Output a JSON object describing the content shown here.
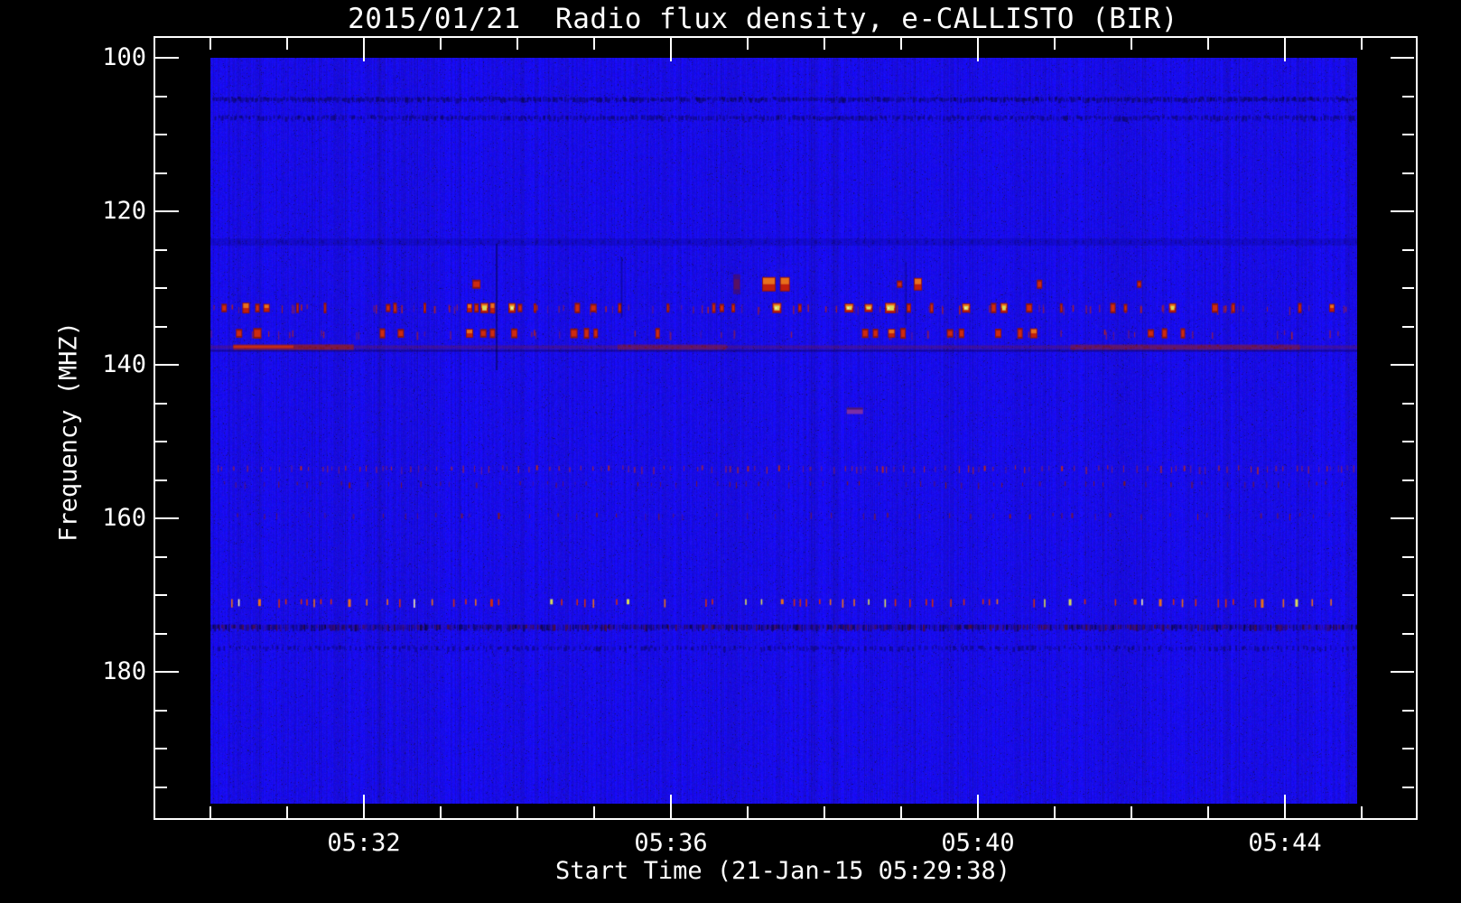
{
  "window": {
    "background": "#000000"
  },
  "title": "2015/01/21  Radio flux density, e-CALLISTO (BIR)",
  "axis": {
    "x_title": "Start Time (21-Jan-15 05:29:38)",
    "y_title": "Frequency (MHZ)",
    "x_major_labels": [
      "05:32",
      "05:36",
      "05:40",
      "05:44"
    ],
    "y_major_labels": [
      "100",
      "120",
      "140",
      "160",
      "180"
    ]
  },
  "chart_data": {
    "type": "heatmap",
    "title": "2015/01/21  Radio flux density, e-CALLISTO (BIR)",
    "xlabel": "Start Time (21-Jan-15 05:29:38)",
    "ylabel": "Frequency (MHZ)",
    "instrument": "e-CALLISTO (BIR)",
    "date": "2015/01/21",
    "start_time_label": "21-Jan-15 05:29:38",
    "x_tick_labels": [
      "05:32",
      "05:36",
      "05:40",
      "05:44"
    ],
    "x_minor_step_minutes": 1,
    "y_tick_values_mhz": [
      100,
      120,
      140,
      160,
      180
    ],
    "y_minor_step_mhz": 5,
    "freq_axis_range_mhz": [
      97.4,
      199.3
    ],
    "freq_image_range_mhz": [
      100.0,
      197.2
    ],
    "legend": "none",
    "grid": "off",
    "palette": {
      "background_blue": "#1A10E8",
      "noise_dark_blue": "#0E06B4",
      "red": "#CE2B10",
      "dark_red": "#8C1710",
      "orange": "#E8701C",
      "yellow": "#D9DC5A",
      "pale_yellow": "#F4EFB4",
      "purple": "#7B2FA5",
      "frame_white": "#FFFFFF"
    },
    "rfi_bands": [
      {
        "freq_mhz": 105.4,
        "kind": "dark_speckle",
        "density": 0.45,
        "strength": 0.3
      },
      {
        "freq_mhz": 107.8,
        "kind": "dark_speckle",
        "density": 0.35,
        "strength": 0.25
      },
      {
        "freq_mhz": 124.0,
        "kind": "dark_band",
        "strength": 0.15
      },
      {
        "freq_mhz": 129.5,
        "kind": "burst_blobs",
        "blobs": [
          [
            0.232,
            9,
            10,
            1
          ],
          [
            0.459,
            8,
            22,
            0
          ],
          [
            0.487,
            15,
            16,
            2
          ],
          [
            0.501,
            11,
            16,
            2
          ],
          [
            0.601,
            6,
            8,
            1
          ],
          [
            0.617,
            9,
            14,
            2
          ],
          [
            0.723,
            6,
            10,
            1
          ],
          [
            0.81,
            5,
            8,
            1
          ]
        ]
      },
      {
        "freq_mhz": 132.6,
        "kind": "blob_row",
        "tick_count": 90,
        "blobs": [
          [
            0.012,
            6,
            1
          ],
          [
            0.031,
            8,
            2
          ],
          [
            0.041,
            5,
            1
          ],
          [
            0.049,
            7,
            2
          ],
          [
            0.076,
            3,
            1
          ],
          [
            0.1,
            3,
            1
          ],
          [
            0.155,
            5,
            1
          ],
          [
            0.161,
            4,
            1
          ],
          [
            0.187,
            3,
            1
          ],
          [
            0.226,
            6,
            2
          ],
          [
            0.232,
            5,
            1
          ],
          [
            0.239,
            9,
            3
          ],
          [
            0.246,
            6,
            2
          ],
          [
            0.263,
            8,
            3
          ],
          [
            0.27,
            5,
            1
          ],
          [
            0.283,
            3,
            1
          ],
          [
            0.32,
            6,
            1
          ],
          [
            0.334,
            7,
            1
          ],
          [
            0.357,
            4,
            1
          ],
          [
            0.399,
            3,
            1
          ],
          [
            0.439,
            4,
            1
          ],
          [
            0.446,
            5,
            1
          ],
          [
            0.456,
            4,
            1
          ],
          [
            0.494,
            10,
            3
          ],
          [
            0.514,
            4,
            1
          ],
          [
            0.557,
            10,
            3
          ],
          [
            0.574,
            9,
            3
          ],
          [
            0.593,
            12,
            3
          ],
          [
            0.609,
            5,
            1
          ],
          [
            0.629,
            4,
            1
          ],
          [
            0.659,
            9,
            3
          ],
          [
            0.683,
            6,
            1
          ],
          [
            0.692,
            8,
            3
          ],
          [
            0.714,
            7,
            1
          ],
          [
            0.742,
            3,
            1
          ],
          [
            0.787,
            6,
            1
          ],
          [
            0.798,
            4,
            1
          ],
          [
            0.839,
            8,
            3
          ],
          [
            0.876,
            7,
            1
          ],
          [
            0.892,
            4,
            1
          ],
          [
            0.95,
            4,
            1
          ],
          [
            0.978,
            6,
            2
          ]
        ]
      },
      {
        "freq_mhz": 135.9,
        "kind": "blob_row",
        "tick_count": 50,
        "blobs": [
          [
            0.025,
            7,
            1
          ],
          [
            0.041,
            9,
            1
          ],
          [
            0.15,
            6,
            1
          ],
          [
            0.166,
            7,
            1
          ],
          [
            0.226,
            8,
            2
          ],
          [
            0.238,
            7,
            1
          ],
          [
            0.246,
            6,
            1
          ],
          [
            0.265,
            7,
            1
          ],
          [
            0.317,
            8,
            1
          ],
          [
            0.328,
            6,
            1
          ],
          [
            0.336,
            5,
            1
          ],
          [
            0.39,
            5,
            1
          ],
          [
            0.571,
            7,
            1
          ],
          [
            0.58,
            6,
            1
          ],
          [
            0.594,
            8,
            2
          ],
          [
            0.604,
            6,
            1
          ],
          [
            0.645,
            7,
            1
          ],
          [
            0.655,
            6,
            1
          ],
          [
            0.687,
            7,
            1
          ],
          [
            0.706,
            6,
            1
          ],
          [
            0.718,
            8,
            2
          ],
          [
            0.82,
            7,
            1
          ],
          [
            0.832,
            6,
            1
          ],
          [
            0.848,
            5,
            1
          ]
        ]
      },
      {
        "freq_mhz": 137.7,
        "kind": "streak",
        "base_alpha": 0.3,
        "segments": [
          [
            0.02,
            0.125,
            0.85
          ],
          [
            0.355,
            0.45,
            0.5
          ],
          [
            0.75,
            0.95,
            0.5
          ]
        ]
      },
      {
        "freq_mhz": 153.5,
        "kind": "speckle_row",
        "density": 0.1,
        "height": 7,
        "color": "#C42A10"
      },
      {
        "freq_mhz": 155.5,
        "kind": "speckle_row",
        "density": 0.055,
        "height": 6,
        "color": "#8A1A0C"
      },
      {
        "freq_mhz": 159.6,
        "kind": "speckle_row",
        "density": 0.04,
        "height": 6,
        "color": "#901C0C"
      },
      {
        "freq_mhz": 171.0,
        "kind": "dash_row",
        "density": 0.085,
        "height": 8
      },
      {
        "freq_mhz": 174.2,
        "kind": "dense_dark_row",
        "height": 6
      },
      {
        "freq_mhz": 176.9,
        "kind": "dark_speckle",
        "density": 0.22,
        "strength": 0.25
      }
    ],
    "vertical_dark_lines": [
      {
        "x_frac": 0.249,
        "y1_local": 206,
        "y2_local": 346,
        "strength": 0.5
      },
      {
        "x_frac": 0.358,
        "y1_local": 221,
        "y2_local": 288,
        "strength": 0.35
      },
      {
        "x_frac": 0.606,
        "y1_local": 226,
        "y2_local": 296,
        "strength": 0.25
      }
    ],
    "purple_patch": {
      "x_frac": 0.562,
      "freq_mhz": 146.0,
      "width": 18,
      "height": 7
    }
  }
}
